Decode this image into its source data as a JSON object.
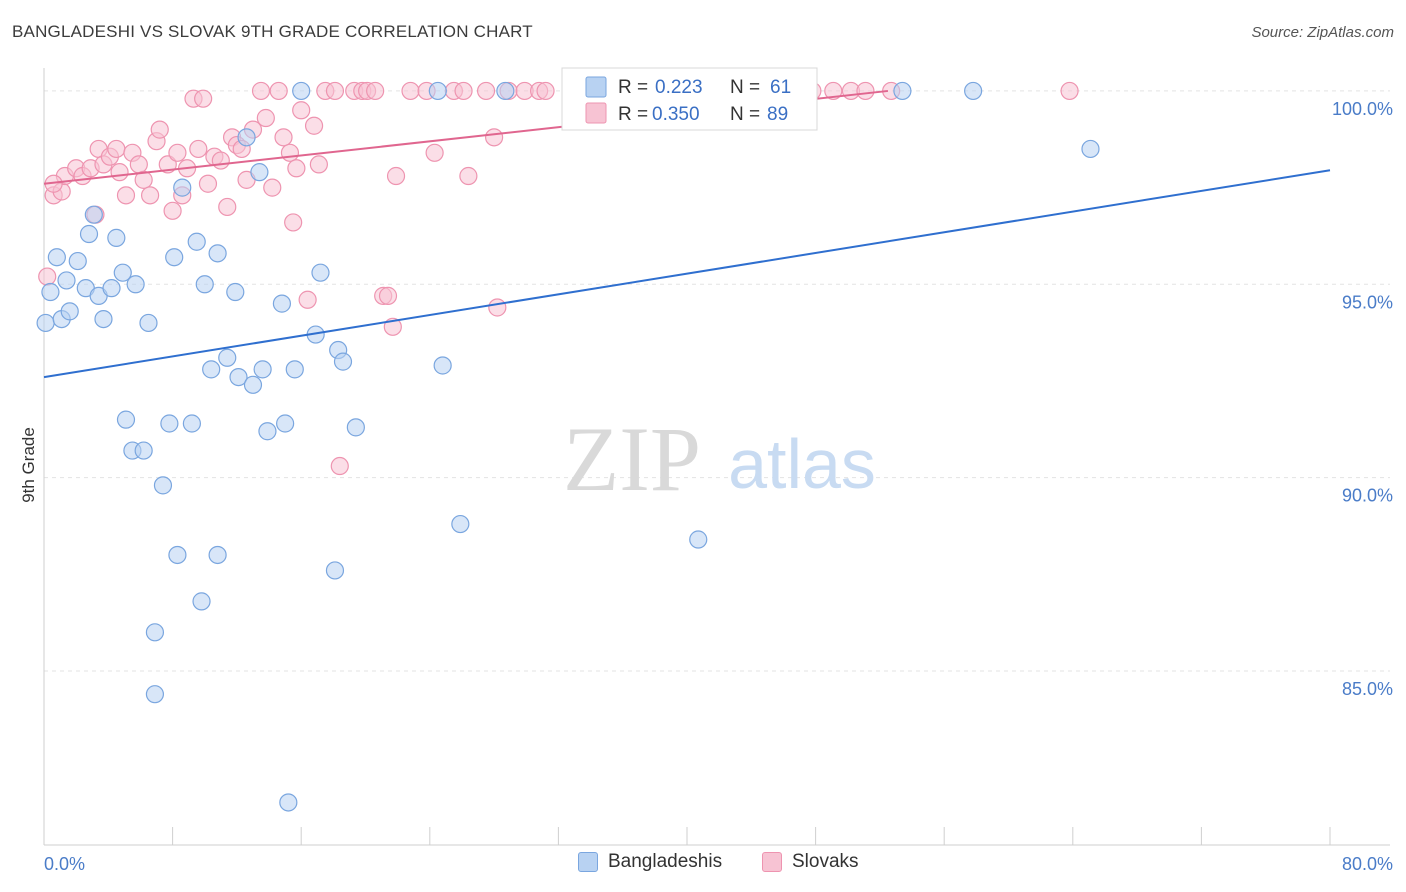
{
  "header": {
    "title": "BANGLADESHI VS SLOVAK 9TH GRADE CORRELATION CHART",
    "source": "Source: ZipAtlas.com"
  },
  "watermark": {
    "zip": "ZIP",
    "atlas": "atlas"
  },
  "colors": {
    "blue_fill": "#b8d2f2",
    "blue_stroke": "#7aa6df",
    "blue_line": "#2f6fcf",
    "pink_fill": "#f7c3d3",
    "pink_stroke": "#ee94b0",
    "pink_line": "#e0668f",
    "tick_text": "#4a7cc8",
    "grid": "#e3e3e3"
  },
  "legend": {
    "blue": {
      "r_label": "R = ",
      "r_value": "0.223",
      "n_label": "N = ",
      "n_value": "61"
    },
    "pink": {
      "r_label": "R = ",
      "r_value": "0.350",
      "n_label": "N = ",
      "n_value": "89"
    }
  },
  "chart_data": {
    "type": "scatter",
    "title": "BANGLADESHI VS SLOVAK 9TH GRADE CORRELATION CHART",
    "xlabel": "",
    "ylabel": "9th Grade",
    "xlim": [
      0,
      80
    ],
    "ylim": [
      80.5,
      100.8
    ],
    "x_tick_labels": [
      "0.0%",
      "80.0%"
    ],
    "y_ticks": [
      85,
      90,
      95,
      100
    ],
    "y_tick_labels": [
      "85.0%",
      "90.0%",
      "95.0%",
      "100.0%"
    ],
    "grid": true,
    "legend_position": "top-center",
    "series": [
      {
        "name": "Bangladeshis",
        "color": "#b8d2f2",
        "trend": {
          "x": [
            0,
            80
          ],
          "y": [
            92.6,
            97.95
          ]
        },
        "points": [
          [
            0.1,
            94.0
          ],
          [
            0.4,
            94.8
          ],
          [
            0.8,
            95.7
          ],
          [
            1.1,
            94.1
          ],
          [
            1.4,
            95.1
          ],
          [
            1.6,
            94.3
          ],
          [
            2.1,
            95.6
          ],
          [
            2.6,
            94.9
          ],
          [
            2.8,
            96.3
          ],
          [
            3.1,
            96.8
          ],
          [
            3.4,
            94.7
          ],
          [
            3.7,
            94.1
          ],
          [
            4.2,
            94.9
          ],
          [
            4.5,
            96.2
          ],
          [
            4.9,
            95.3
          ],
          [
            5.7,
            95.0
          ],
          [
            6.5,
            94.0
          ],
          [
            8.1,
            95.7
          ],
          [
            8.6,
            97.5
          ],
          [
            9.5,
            96.1
          ],
          [
            10.0,
            95.0
          ],
          [
            10.4,
            92.8
          ],
          [
            10.8,
            95.8
          ],
          [
            11.4,
            93.1
          ],
          [
            11.9,
            94.8
          ],
          [
            12.1,
            92.6
          ],
          [
            12.6,
            98.8
          ],
          [
            13.0,
            92.4
          ],
          [
            13.4,
            97.9
          ],
          [
            13.6,
            92.8
          ],
          [
            14.8,
            94.5
          ],
          [
            15.6,
            92.8
          ],
          [
            16.0,
            100.0
          ],
          [
            16.9,
            93.7
          ],
          [
            17.2,
            95.3
          ],
          [
            18.3,
            93.3
          ],
          [
            18.6,
            93.0
          ],
          [
            19.4,
            91.3
          ],
          [
            24.5,
            100.0
          ],
          [
            24.8,
            92.9
          ],
          [
            25.9,
            88.8
          ],
          [
            28.7,
            100.0
          ],
          [
            5.1,
            91.5
          ],
          [
            5.5,
            90.7
          ],
          [
            6.2,
            90.7
          ],
          [
            7.4,
            89.8
          ],
          [
            7.8,
            91.4
          ],
          [
            9.2,
            91.4
          ],
          [
            8.3,
            88.0
          ],
          [
            10.8,
            88.0
          ],
          [
            6.9,
            86.0
          ],
          [
            9.8,
            86.8
          ],
          [
            6.9,
            84.4
          ],
          [
            13.9,
            91.2
          ],
          [
            15.0,
            91.4
          ],
          [
            18.1,
            87.6
          ],
          [
            15.2,
            81.6
          ],
          [
            40.7,
            88.4
          ],
          [
            53.4,
            100.0
          ],
          [
            57.8,
            100.0
          ],
          [
            65.1,
            98.5
          ]
        ]
      },
      {
        "name": "Slovaks",
        "color": "#f7c3d3",
        "trend": {
          "x": [
            0,
            52.5
          ],
          "y": [
            97.6,
            100.0
          ]
        },
        "points": [
          [
            0.2,
            95.2
          ],
          [
            0.6,
            97.3
          ],
          [
            1.1,
            97.4
          ],
          [
            1.3,
            97.8
          ],
          [
            2.0,
            98.0
          ],
          [
            2.4,
            97.8
          ],
          [
            2.9,
            98.0
          ],
          [
            3.2,
            96.8
          ],
          [
            3.4,
            98.5
          ],
          [
            3.7,
            98.1
          ],
          [
            4.1,
            98.3
          ],
          [
            4.5,
            98.5
          ],
          [
            4.7,
            97.9
          ],
          [
            5.1,
            97.3
          ],
          [
            5.5,
            98.4
          ],
          [
            5.9,
            98.1
          ],
          [
            6.2,
            97.7
          ],
          [
            6.6,
            97.3
          ],
          [
            7.0,
            98.7
          ],
          [
            7.2,
            99.0
          ],
          [
            7.7,
            98.1
          ],
          [
            8.0,
            96.9
          ],
          [
            8.3,
            98.4
          ],
          [
            8.6,
            97.3
          ],
          [
            8.9,
            98.0
          ],
          [
            9.3,
            99.8
          ],
          [
            9.6,
            98.5
          ],
          [
            9.9,
            99.8
          ],
          [
            10.2,
            97.6
          ],
          [
            10.6,
            98.3
          ],
          [
            11.0,
            98.2
          ],
          [
            11.4,
            97.0
          ],
          [
            11.7,
            98.8
          ],
          [
            12.0,
            98.6
          ],
          [
            12.3,
            98.5
          ],
          [
            12.6,
            97.7
          ],
          [
            13.0,
            99.0
          ],
          [
            13.5,
            100.0
          ],
          [
            13.8,
            99.3
          ],
          [
            14.2,
            97.5
          ],
          [
            14.6,
            100.0
          ],
          [
            14.9,
            98.8
          ],
          [
            15.3,
            98.4
          ],
          [
            15.5,
            96.6
          ],
          [
            15.7,
            98.0
          ],
          [
            16.0,
            99.5
          ],
          [
            16.4,
            94.6
          ],
          [
            16.8,
            99.1
          ],
          [
            17.1,
            98.1
          ],
          [
            17.5,
            100.0
          ],
          [
            18.1,
            100.0
          ],
          [
            19.3,
            100.0
          ],
          [
            19.8,
            100.0
          ],
          [
            20.1,
            100.0
          ],
          [
            20.6,
            100.0
          ],
          [
            21.1,
            94.7
          ],
          [
            21.4,
            94.7
          ],
          [
            21.7,
            93.9
          ],
          [
            21.9,
            97.8
          ],
          [
            22.8,
            100.0
          ],
          [
            23.8,
            100.0
          ],
          [
            24.3,
            98.4
          ],
          [
            25.5,
            100.0
          ],
          [
            26.1,
            100.0
          ],
          [
            26.4,
            97.8
          ],
          [
            27.5,
            100.0
          ],
          [
            28.0,
            98.8
          ],
          [
            28.2,
            94.4
          ],
          [
            28.9,
            100.0
          ],
          [
            29.9,
            100.0
          ],
          [
            30.8,
            100.0
          ],
          [
            31.2,
            100.0
          ],
          [
            32.8,
            100.0
          ],
          [
            33.5,
            100.0
          ],
          [
            34.4,
            100.0
          ],
          [
            35.4,
            100.0
          ],
          [
            37.1,
            100.0
          ],
          [
            38.8,
            100.0
          ],
          [
            41.2,
            100.0
          ],
          [
            42.3,
            100.0
          ],
          [
            44.9,
            100.0
          ],
          [
            47.8,
            100.0
          ],
          [
            49.1,
            100.0
          ],
          [
            50.2,
            100.0
          ],
          [
            51.1,
            100.0
          ],
          [
            52.7,
            100.0
          ],
          [
            63.8,
            100.0
          ],
          [
            18.4,
            90.3
          ],
          [
            0.6,
            97.6
          ]
        ]
      }
    ]
  }
}
